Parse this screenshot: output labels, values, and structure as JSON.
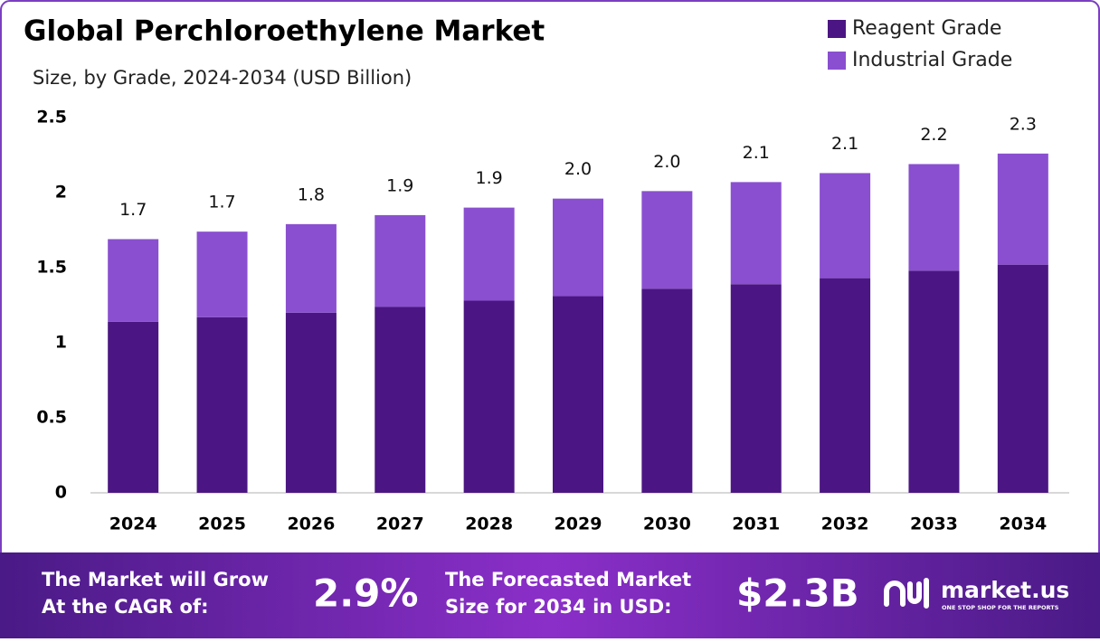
{
  "chart_data": {
    "type": "stacked-bar",
    "title": "Global Perchloroethylene Market",
    "subtitle": "Size, by Grade, 2024-2034 (USD Billion)",
    "categories": [
      "2024",
      "2025",
      "2026",
      "2027",
      "2028",
      "2029",
      "2030",
      "2031",
      "2032",
      "2033",
      "2034"
    ],
    "series": [
      {
        "name": "Reagent Grade",
        "color": "#4b1683",
        "values": [
          1.14,
          1.17,
          1.2,
          1.24,
          1.28,
          1.31,
          1.36,
          1.39,
          1.43,
          1.48,
          1.52
        ]
      },
      {
        "name": "Industrial Grade",
        "color": "#8a4fd0",
        "values": [
          0.55,
          0.57,
          0.59,
          0.61,
          0.62,
          0.65,
          0.65,
          0.68,
          0.7,
          0.71,
          0.74
        ]
      }
    ],
    "total": {
      "values": [
        1.69,
        1.74,
        1.79,
        1.85,
        1.9,
        1.96,
        2.01,
        2.07,
        2.13,
        2.19,
        2.26
      ],
      "value_labels": [
        "1.7",
        "1.7",
        "1.8",
        "1.9",
        "1.9",
        "2.0",
        "2.0",
        "2.1",
        "2.1",
        "2.2",
        "2.3"
      ]
    },
    "ylim": [
      0,
      2.5
    ],
    "yticks": [
      0,
      0.5,
      1,
      1.5,
      2,
      2.5
    ],
    "grid": false,
    "legend": "top-right"
  },
  "footer": {
    "cagr_text": [
      "The Market will Grow",
      "At the CAGR of:"
    ],
    "cagr_value": "2.9%",
    "forecast_text": [
      "The Forecasted Market",
      "Size for 2034 in USD:"
    ],
    "forecast_value": "$2.3B",
    "brand": "market.us",
    "brand_tagline": "ONE STOP SHOP FOR THE REPORTS"
  }
}
